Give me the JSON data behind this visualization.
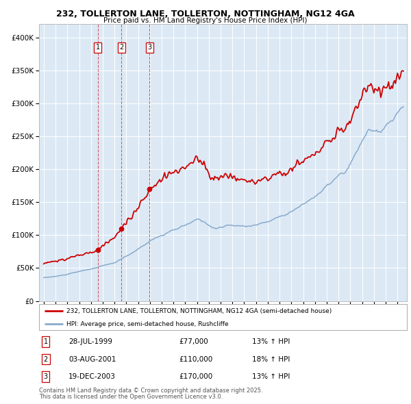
{
  "title1": "232, TOLLERTON LANE, TOLLERTON, NOTTINGHAM, NG12 4GA",
  "title2": "Price paid vs. HM Land Registry's House Price Index (HPI)",
  "fig_bg_color": "#ffffff",
  "plot_bg_color": "#dce9f5",
  "red_line_color": "#cc0000",
  "blue_line_color": "#88aacc",
  "grid_color": "#ffffff",
  "ylim": [
    0,
    420000
  ],
  "xlim_start": 1994.6,
  "xlim_end": 2025.8,
  "yticks": [
    0,
    50000,
    100000,
    150000,
    200000,
    250000,
    300000,
    350000,
    400000
  ],
  "ytick_labels": [
    "£0",
    "£50K",
    "£100K",
    "£150K",
    "£200K",
    "£250K",
    "£300K",
    "£350K",
    "£400K"
  ],
  "transactions": [
    {
      "num": 1,
      "date_x": 1999.57,
      "price": 77000,
      "label": "28-JUL-1999",
      "price_str": "£77,000",
      "hpi_pct": "13%"
    },
    {
      "num": 2,
      "date_x": 2001.59,
      "price": 110000,
      "label": "03-AUG-2001",
      "price_str": "£110,000",
      "hpi_pct": "18%"
    },
    {
      "num": 3,
      "date_x": 2003.96,
      "price": 170000,
      "label": "19-DEC-2003",
      "price_str": "£170,000",
      "hpi_pct": "13%"
    }
  ],
  "legend_line1": "232, TOLLERTON LANE, TOLLERTON, NOTTINGHAM, NG12 4GA (semi-detached house)",
  "legend_line2": "HPI: Average price, semi-detached house, Rushcliffe",
  "footer1": "Contains HM Land Registry data © Crown copyright and database right 2025.",
  "footer2": "This data is licensed under the Open Government Licence v3.0.",
  "hpi_arrow": "↑"
}
